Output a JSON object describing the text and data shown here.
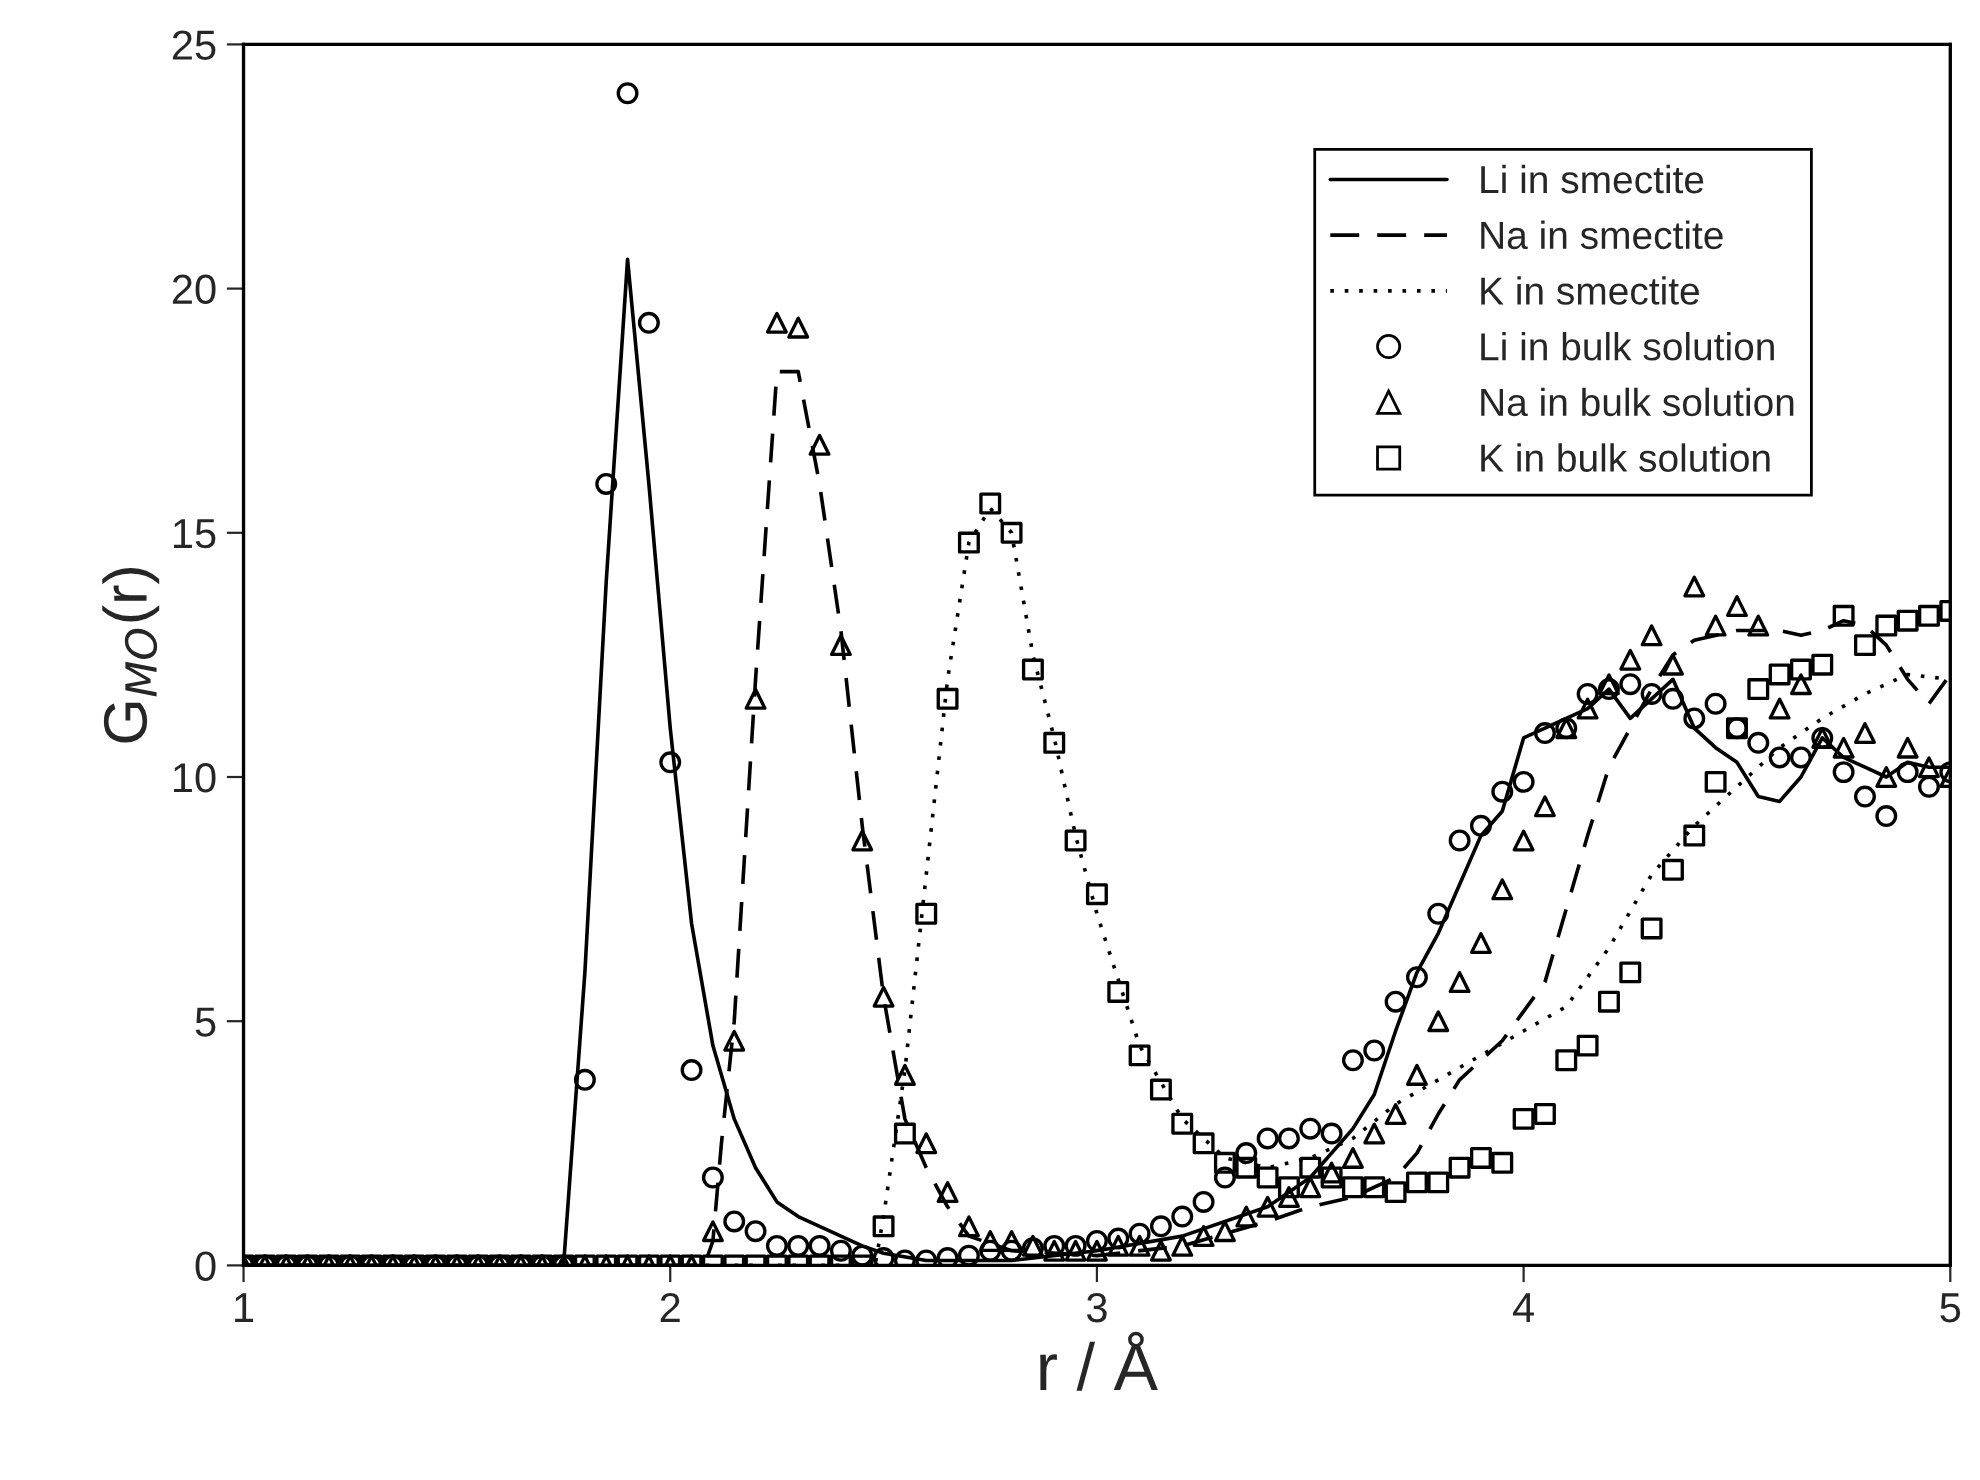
{
  "chart_data": {
    "type": "line",
    "xlabel": "r / Å",
    "ylabel": "G$_{MO}$(r)",
    "xlim": [
      1,
      5
    ],
    "ylim": [
      0,
      25
    ],
    "xticks": [
      1,
      2,
      3,
      4,
      5
    ],
    "yticks": [
      0,
      5,
      10,
      15,
      20,
      25
    ],
    "grid": false,
    "legend": "top right",
    "series": [
      {
        "name": "Li in smectite",
        "line_style": "solid",
        "marker": "none",
        "color": "#000000",
        "x": [
          1.0,
          1.75,
          1.8,
          1.85,
          1.9,
          1.95,
          2.0,
          2.05,
          2.1,
          2.15,
          2.2,
          2.25,
          2.3,
          2.35,
          2.4,
          2.45,
          2.5,
          2.6,
          2.8,
          3.0,
          3.2,
          3.4,
          3.5,
          3.6,
          3.65,
          3.7,
          3.75,
          3.8,
          3.85,
          3.9,
          3.95,
          4.0,
          4.05,
          4.1,
          4.15,
          4.2,
          4.25,
          4.3,
          4.35,
          4.4,
          4.45,
          4.5,
          4.55,
          4.6,
          4.65,
          4.7,
          4.75,
          4.8,
          4.85,
          4.9,
          4.95,
          5.0
        ],
        "values": [
          0,
          0,
          6,
          14,
          20.6,
          16,
          11,
          7,
          4.5,
          3.0,
          2.0,
          1.3,
          1.0,
          0.8,
          0.6,
          0.4,
          0.25,
          0.1,
          0.1,
          0.3,
          0.6,
          1.2,
          1.8,
          2.8,
          3.5,
          4.8,
          6.0,
          6.8,
          7.8,
          8.8,
          9.3,
          10.8,
          11.0,
          11.2,
          11.4,
          11.8,
          11.2,
          11.6,
          12.0,
          11.0,
          10.6,
          10.3,
          9.6,
          9.5,
          10.0,
          10.8,
          10.4,
          10.2,
          10.0,
          10.3,
          10.2,
          10.2
        ]
      },
      {
        "name": "Na in smectite",
        "line_style": "dashed",
        "marker": "none",
        "color": "#000000",
        "x": [
          1.0,
          2.08,
          2.1,
          2.12,
          2.15,
          2.2,
          2.25,
          2.3,
          2.35,
          2.4,
          2.45,
          2.5,
          2.55,
          2.6,
          2.65,
          2.7,
          2.8,
          3.0,
          3.2,
          3.4,
          3.5,
          3.6,
          3.7,
          3.75,
          3.8,
          3.85,
          3.9,
          3.95,
          4.0,
          4.05,
          4.1,
          4.15,
          4.2,
          4.25,
          4.3,
          4.35,
          4.4,
          4.5,
          4.6,
          4.65,
          4.7,
          4.75,
          4.8,
          4.85,
          4.9,
          4.95,
          5.0
        ],
        "values": [
          0,
          0,
          0.5,
          2.5,
          5,
          12,
          18.3,
          18.3,
          16,
          13,
          9,
          5.5,
          3.0,
          2.0,
          1.2,
          0.6,
          0.3,
          0.2,
          0.4,
          0.9,
          1.2,
          1.4,
          1.8,
          2.3,
          3.1,
          3.8,
          4.2,
          4.6,
          5.2,
          5.8,
          7.3,
          8.8,
          10.2,
          11.0,
          11.8,
          12.5,
          12.8,
          13.0,
          13.0,
          12.9,
          13.0,
          13.2,
          13.1,
          12.7,
          12.0,
          11.5,
          12.1
        ]
      },
      {
        "name": "K in smectite",
        "line_style": "dotted",
        "marker": "none",
        "color": "#000000",
        "x": [
          1.0,
          2.48,
          2.5,
          2.55,
          2.6,
          2.65,
          2.7,
          2.75,
          2.8,
          2.85,
          2.9,
          2.95,
          3.0,
          3.1,
          3.2,
          3.3,
          3.4,
          3.5,
          3.6,
          3.7,
          3.8,
          3.9,
          4.0,
          4.1,
          4.2,
          4.3,
          4.4,
          4.5,
          4.6,
          4.7,
          4.8,
          4.9,
          5.0
        ],
        "values": [
          0,
          0,
          1.0,
          4.0,
          8,
          12,
          14.8,
          15.5,
          15.0,
          12.5,
          10.8,
          8.8,
          7.2,
          4.5,
          3.0,
          2.2,
          2.0,
          2.2,
          2.6,
          3.3,
          3.8,
          4.3,
          4.8,
          5.3,
          6.5,
          8.0,
          9.0,
          9.8,
          10.6,
          11.2,
          11.7,
          12.1,
          12.0
        ]
      },
      {
        "name": "Li in bulk solution",
        "type": "scatter",
        "marker": "circle",
        "color": "#000000",
        "x": [
          1.0,
          1.05,
          1.1,
          1.15,
          1.2,
          1.25,
          1.3,
          1.35,
          1.4,
          1.45,
          1.5,
          1.55,
          1.6,
          1.65,
          1.7,
          1.75,
          1.8,
          1.85,
          1.9,
          1.95,
          2.0,
          2.05,
          2.1,
          2.15,
          2.2,
          2.25,
          2.3,
          2.35,
          2.4,
          2.45,
          2.5,
          2.55,
          2.6,
          2.65,
          2.7,
          2.75,
          2.8,
          2.85,
          2.9,
          2.95,
          3.0,
          3.05,
          3.1,
          3.15,
          3.2,
          3.25,
          3.3,
          3.35,
          3.4,
          3.45,
          3.5,
          3.55,
          3.6,
          3.65,
          3.7,
          3.75,
          3.8,
          3.85,
          3.9,
          3.95,
          4.0,
          4.05,
          4.1,
          4.15,
          4.2,
          4.25,
          4.3,
          4.35,
          4.4,
          4.45,
          4.5,
          4.55,
          4.6,
          4.65,
          4.7,
          4.75,
          4.8,
          4.85,
          4.9,
          4.95,
          5.0
        ],
        "values": [
          0,
          0,
          0,
          0,
          0,
          0,
          0,
          0,
          0,
          0,
          0,
          0,
          0,
          0,
          0,
          0,
          3.8,
          16.0,
          24.0,
          19.3,
          10.3,
          4.0,
          1.8,
          0.9,
          0.7,
          0.4,
          0.4,
          0.4,
          0.3,
          0.2,
          0.15,
          0.1,
          0.1,
          0.15,
          0.2,
          0.3,
          0.3,
          0.35,
          0.4,
          0.4,
          0.5,
          0.55,
          0.65,
          0.8,
          1.0,
          1.3,
          1.8,
          2.3,
          2.6,
          2.6,
          2.8,
          2.7,
          4.2,
          4.4,
          5.4,
          5.9,
          7.2,
          8.7,
          9.0,
          9.7,
          9.9,
          10.9,
          11.0,
          11.7,
          11.8,
          11.9,
          11.7,
          11.6,
          11.2,
          11.5,
          11.0,
          10.7,
          10.4,
          10.4,
          10.8,
          10.1,
          9.6,
          9.2,
          10.1,
          9.8,
          10.1
        ]
      },
      {
        "name": "Na in bulk solution",
        "type": "scatter",
        "marker": "triangle",
        "color": "#000000",
        "x": [
          1.0,
          1.05,
          1.1,
          1.15,
          1.2,
          1.25,
          1.3,
          1.35,
          1.4,
          1.45,
          1.5,
          1.55,
          1.6,
          1.65,
          1.7,
          1.75,
          1.8,
          1.85,
          1.9,
          1.95,
          2.0,
          2.05,
          2.1,
          2.15,
          2.2,
          2.25,
          2.3,
          2.35,
          2.4,
          2.45,
          2.5,
          2.55,
          2.6,
          2.65,
          2.7,
          2.75,
          2.8,
          2.85,
          2.9,
          2.95,
          3.0,
          3.05,
          3.1,
          3.15,
          3.2,
          3.25,
          3.3,
          3.35,
          3.4,
          3.45,
          3.5,
          3.55,
          3.6,
          3.65,
          3.7,
          3.75,
          3.8,
          3.85,
          3.9,
          3.95,
          4.0,
          4.05,
          4.1,
          4.15,
          4.2,
          4.25,
          4.3,
          4.35,
          4.4,
          4.45,
          4.5,
          4.55,
          4.6,
          4.65,
          4.7,
          4.75,
          4.8,
          4.85,
          4.9,
          4.95,
          5.0
        ],
        "values": [
          0,
          0,
          0,
          0,
          0,
          0,
          0,
          0,
          0,
          0,
          0,
          0,
          0,
          0,
          0,
          0,
          0,
          0,
          0,
          0,
          0,
          0,
          0.7,
          4.6,
          11.6,
          19.3,
          19.2,
          16.8,
          12.7,
          8.7,
          5.5,
          3.9,
          2.5,
          1.5,
          0.8,
          0.5,
          0.5,
          0.4,
          0.3,
          0.3,
          0.3,
          0.4,
          0.4,
          0.3,
          0.4,
          0.6,
          0.7,
          1.0,
          1.2,
          1.4,
          1.6,
          1.9,
          2.2,
          2.7,
          3.1,
          3.9,
          5.0,
          5.8,
          6.6,
          7.7,
          8.7,
          9.4,
          11.0,
          11.4,
          11.9,
          12.4,
          12.9,
          12.3,
          13.9,
          13.1,
          13.5,
          13.1,
          11.4,
          11.9,
          10.8,
          10.6,
          10.9,
          10.0,
          10.6,
          10.2,
          10.0
        ]
      },
      {
        "name": "K in bulk solution",
        "type": "scatter",
        "marker": "square",
        "color": "#000000",
        "x": [
          1.0,
          1.05,
          1.1,
          1.15,
          1.2,
          1.25,
          1.3,
          1.35,
          1.4,
          1.45,
          1.5,
          1.55,
          1.6,
          1.65,
          1.7,
          1.75,
          1.8,
          1.85,
          1.9,
          1.95,
          2.0,
          2.05,
          2.1,
          2.15,
          2.2,
          2.25,
          2.3,
          2.35,
          2.4,
          2.45,
          2.5,
          2.55,
          2.6,
          2.65,
          2.7,
          2.75,
          2.8,
          2.85,
          2.9,
          2.95,
          3.0,
          3.05,
          3.1,
          3.15,
          3.2,
          3.25,
          3.3,
          3.35,
          3.4,
          3.45,
          3.5,
          3.55,
          3.6,
          3.65,
          3.7,
          3.75,
          3.8,
          3.85,
          3.9,
          3.95,
          4.0,
          4.05,
          4.1,
          4.15,
          4.2,
          4.25,
          4.3,
          4.35,
          4.4,
          4.45,
          4.5,
          4.55,
          4.6,
          4.65,
          4.7,
          4.75,
          4.8,
          4.85,
          4.9,
          4.95,
          5.0
        ],
        "values": [
          0,
          0,
          0,
          0,
          0,
          0,
          0,
          0,
          0,
          0,
          0,
          0,
          0,
          0,
          0,
          0,
          0,
          0,
          0,
          0,
          0,
          0,
          0,
          0,
          0,
          0,
          0,
          0,
          0,
          0,
          0.8,
          2.7,
          7.2,
          11.6,
          14.8,
          15.6,
          15.0,
          12.2,
          10.7,
          8.7,
          7.6,
          5.6,
          4.3,
          3.6,
          2.9,
          2.5,
          2.1,
          2.0,
          1.8,
          1.6,
          2.0,
          1.8,
          1.6,
          1.6,
          1.5,
          1.7,
          1.7,
          2.0,
          2.2,
          2.1,
          3.0,
          3.1,
          4.2,
          4.5,
          5.4,
          6.0,
          6.9,
          8.1,
          8.8,
          9.9,
          11.0,
          11.8,
          12.1,
          12.2,
          12.3,
          13.3,
          12.7,
          13.1,
          13.2,
          13.3,
          13.4
        ]
      }
    ]
  }
}
